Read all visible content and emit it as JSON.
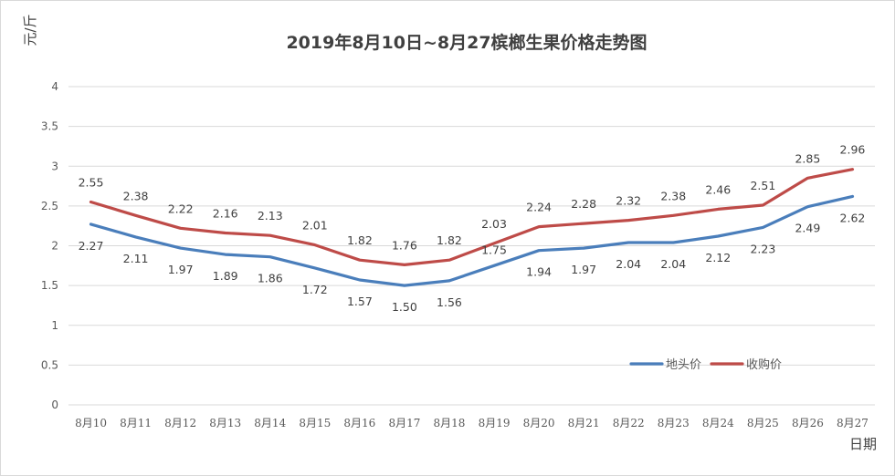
{
  "chart_data": {
    "type": "line",
    "title": "2019年8月10日~8月27槟榔生果价格走势图",
    "ylabel": "元/斤",
    "xlabel": "日期",
    "categories": [
      "8月10",
      "8月11",
      "8月12",
      "8月13",
      "8月14",
      "8月15",
      "8月16",
      "8月17",
      "8月18",
      "8月19",
      "8月20",
      "8月21",
      "8月22",
      "8月23",
      "8月24",
      "8月25",
      "8月26",
      "8月27"
    ],
    "ylim": [
      0,
      4
    ],
    "yticks": [
      "0",
      "0.5",
      "1",
      "1.5",
      "2",
      "2.5",
      "3",
      "3.5",
      "4"
    ],
    "grid": true,
    "legend_position": "bottom-right",
    "series": [
      {
        "name": "地头价",
        "color": "#4a7ebb",
        "values": [
          2.27,
          2.11,
          1.97,
          1.89,
          1.86,
          1.72,
          1.57,
          1.5,
          1.56,
          1.75,
          1.94,
          1.97,
          2.04,
          2.04,
          2.12,
          2.23,
          2.49,
          2.62
        ],
        "labels": [
          "2.27",
          "2.11",
          "1.97",
          "1.89",
          "1.86",
          "1.72",
          "1.57",
          "1.50",
          "1.56",
          "1.75",
          "1.94",
          "1.97",
          "2.04",
          "2.04",
          "2.12",
          "2.23",
          "2.49",
          "2.62"
        ]
      },
      {
        "name": "收购价",
        "color": "#be4b48",
        "values": [
          2.55,
          2.38,
          2.22,
          2.16,
          2.13,
          2.01,
          1.82,
          1.76,
          1.82,
          2.03,
          2.24,
          2.28,
          2.32,
          2.38,
          2.46,
          2.51,
          2.85,
          2.96
        ],
        "labels": [
          "2.55",
          "2.38",
          "2.22",
          "2.16",
          "2.13",
          "2.01",
          "1.82",
          "1.76",
          "1.82",
          "2.03",
          "2.24",
          "2.28",
          "2.32",
          "2.38",
          "2.46",
          "2.51",
          "2.85",
          "2.96"
        ]
      }
    ]
  }
}
